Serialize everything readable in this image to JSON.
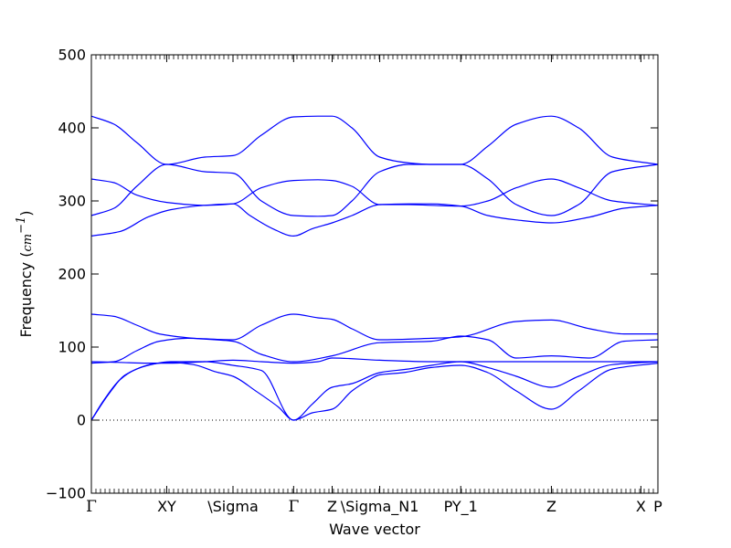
{
  "chart_data": {
    "type": "line",
    "title": "",
    "xlabel": "Wave vector",
    "ylabel": {
      "text": "Frequency (",
      "unit": "cm",
      "exponent": "−1",
      "close": ")"
    },
    "ylim": [
      -100,
      500
    ],
    "yticks": [
      -100,
      0,
      100,
      200,
      300,
      400,
      500
    ],
    "grid": false,
    "legend": "none",
    "reference_line": {
      "y": 0,
      "style": "dotted"
    },
    "series_color": "#0000ff",
    "x_labels": [
      {
        "x": 0.0,
        "label": "Γ"
      },
      {
        "x": 0.133,
        "label": "XY"
      },
      {
        "x": 0.25,
        "label": "\\Sigma"
      },
      {
        "x": 0.357,
        "label": "Γ"
      },
      {
        "x": 0.425,
        "label": "Z"
      },
      {
        "x": 0.509,
        "label": "\\Sigma_N1"
      },
      {
        "x": 0.652,
        "label": "PY_1"
      },
      {
        "x": 0.812,
        "label": "Z"
      },
      {
        "x": 0.97,
        "label": "X"
      },
      {
        "x": 1.0,
        "label": "P"
      }
    ],
    "bands": [
      {
        "name": "",
        "x": [
          0,
          0.02,
          0.05,
          0.08,
          0.11,
          0.14,
          0.18,
          0.22,
          0.25,
          0.29,
          0.33,
          0.357,
          0.39,
          0.425,
          0.46,
          0.49,
          0.509,
          0.55,
          0.6,
          0.652,
          0.7,
          0.75,
          0.812,
          0.86,
          0.92,
          1.0
        ],
        "y": [
          0,
          25,
          55,
          70,
          77,
          79,
          76,
          66,
          60,
          40,
          18,
          0,
          10,
          15,
          40,
          55,
          62,
          65,
          72,
          75,
          65,
          40,
          15,
          40,
          70,
          78
        ]
      },
      {
        "name": "",
        "x": [
          0,
          0.03,
          0.06,
          0.1,
          0.14,
          0.2,
          0.25,
          0.3,
          0.357,
          0.39,
          0.425,
          0.46,
          0.509,
          0.56,
          0.6,
          0.652,
          0.7,
          0.75,
          0.812,
          0.86,
          0.92,
          1.0
        ],
        "y": [
          0,
          35,
          62,
          75,
          80,
          80,
          75,
          68,
          0,
          22,
          45,
          50,
          65,
          70,
          75,
          80,
          72,
          60,
          45,
          60,
          76,
          80
        ]
      },
      {
        "name": "",
        "x": [
          0,
          0.05,
          0.1,
          0.14,
          0.2,
          0.25,
          0.3,
          0.357,
          0.4,
          0.425,
          0.509,
          0.6,
          0.652,
          0.75,
          0.812,
          0.9,
          1.0
        ],
        "y": [
          80,
          79,
          78,
          78,
          80,
          82,
          80,
          78,
          80,
          85,
          82,
          80,
          80,
          80,
          80,
          80,
          80
        ]
      },
      {
        "name": "",
        "x": [
          0,
          0.04,
          0.08,
          0.12,
          0.17,
          0.25,
          0.3,
          0.357,
          0.4,
          0.425,
          0.46,
          0.509,
          0.6,
          0.652,
          0.75,
          0.812,
          0.88,
          0.94,
          1.0
        ],
        "y": [
          78,
          80,
          95,
          108,
          112,
          110,
          130,
          145,
          140,
          138,
          125,
          110,
          112,
          114,
          135,
          137,
          125,
          118,
          118
        ]
      },
      {
        "name": "",
        "x": [
          0,
          0.04,
          0.08,
          0.12,
          0.18,
          0.25,
          0.3,
          0.357,
          0.425,
          0.509,
          0.6,
          0.652,
          0.7,
          0.75,
          0.812,
          0.88,
          0.94,
          1.0
        ],
        "y": [
          145,
          142,
          130,
          118,
          112,
          108,
          90,
          80,
          88,
          106,
          108,
          115,
          110,
          85,
          88,
          85,
          108,
          110
        ]
      },
      {
        "name": "",
        "x": [
          0,
          0.05,
          0.1,
          0.14,
          0.2,
          0.25,
          0.28,
          0.32,
          0.357,
          0.39,
          0.425,
          0.46,
          0.509,
          0.56,
          0.6,
          0.652,
          0.7,
          0.75,
          0.812,
          0.88,
          0.94,
          1.0
        ],
        "y": [
          252,
          258,
          278,
          288,
          294,
          296,
          280,
          262,
          252,
          262,
          270,
          280,
          295,
          296,
          296,
          293,
          280,
          274,
          270,
          278,
          290,
          294
        ]
      },
      {
        "name": "",
        "x": [
          0,
          0.04,
          0.08,
          0.133,
          0.2,
          0.25,
          0.3,
          0.357,
          0.4,
          0.425,
          0.46,
          0.509,
          0.56,
          0.6,
          0.652,
          0.7,
          0.75,
          0.812,
          0.86,
          0.92,
          1.0
        ],
        "y": [
          330,
          325,
          308,
          298,
          294,
          296,
          318,
          328,
          329,
          328,
          320,
          295,
          295,
          294,
          293,
          300,
          318,
          330,
          318,
          300,
          294
        ]
      },
      {
        "name": "",
        "x": [
          0,
          0.04,
          0.08,
          0.133,
          0.2,
          0.25,
          0.3,
          0.357,
          0.4,
          0.425,
          0.46,
          0.509,
          0.56,
          0.6,
          0.652,
          0.7,
          0.75,
          0.812,
          0.86,
          0.92,
          1.0
        ],
        "y": [
          280,
          290,
          320,
          350,
          340,
          338,
          300,
          280,
          279,
          280,
          300,
          340,
          350,
          350,
          350,
          330,
          295,
          280,
          295,
          340,
          350
        ]
      },
      {
        "name": "",
        "x": [
          0,
          0.04,
          0.08,
          0.133,
          0.2,
          0.25,
          0.3,
          0.357,
          0.4,
          0.425,
          0.46,
          0.509,
          0.56,
          0.6,
          0.652,
          0.7,
          0.75,
          0.812,
          0.86,
          0.92,
          1.0
        ],
        "y": [
          416,
          405,
          380,
          350,
          360,
          362,
          390,
          415,
          416,
          416,
          400,
          360,
          352,
          350,
          350,
          375,
          405,
          416,
          400,
          360,
          350
        ]
      }
    ]
  }
}
